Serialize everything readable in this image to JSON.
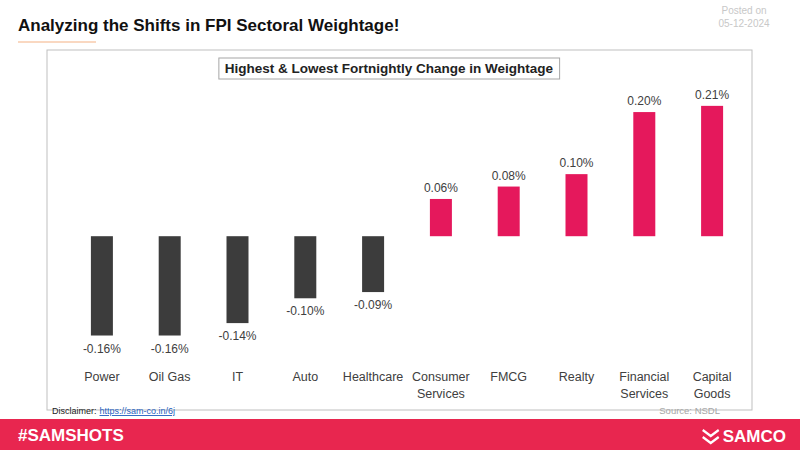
{
  "page": {
    "heading": "Analyzing the Shifts in FPI Sectoral Weightage!",
    "posted_label": "Posted on",
    "posted_date": "05-12-2024",
    "disclaimer_label": "Disclaimer:",
    "disclaimer_link": "https://sam-co.in/6j",
    "source": "Source: NSDL",
    "hashtag": "#SAMSHOTS",
    "brand": "SAMCO"
  },
  "chart_data": {
    "type": "bar",
    "title": "Highest & Lowest Fortnightly Change in Weightage",
    "categories": [
      "Power",
      "Oil Gas",
      "IT",
      "Auto",
      "Healthcare",
      "Consumer Services",
      "FMCG",
      "Realty",
      "Financial Services",
      "Capital Goods"
    ],
    "values": [
      -0.16,
      -0.16,
      -0.14,
      -0.1,
      -0.09,
      0.06,
      0.08,
      0.1,
      0.2,
      0.21
    ],
    "value_labels": [
      "-0.16%",
      "-0.16%",
      "-0.14%",
      "-0.10%",
      "-0.09%",
      "0.06%",
      "0.08%",
      "0.10%",
      "0.20%",
      "0.21%"
    ],
    "colors": [
      "#3c3c3c",
      "#3c3c3c",
      "#3c3c3c",
      "#3c3c3c",
      "#3c3c3c",
      "#e5185c",
      "#e5185c",
      "#e5185c",
      "#e5185c",
      "#e5185c"
    ],
    "ylim": [
      -0.28,
      0.3
    ],
    "grid": false,
    "data_labels": true,
    "tick_labels": "x"
  }
}
